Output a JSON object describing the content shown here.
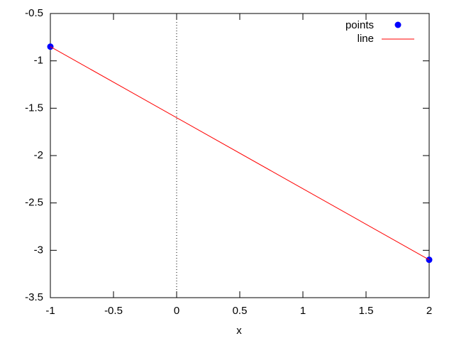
{
  "chart_data": {
    "type": "line",
    "xlabel": "x",
    "series": [
      {
        "name": "points",
        "color": "#0000ff",
        "mode": "points",
        "x": [
          -1,
          2
        ],
        "values": [
          -0.85,
          -3.1
        ]
      },
      {
        "name": "line",
        "color": "#ff0000",
        "mode": "lines",
        "x": [
          -1,
          2
        ],
        "values": [
          -0.85,
          -3.1
        ]
      }
    ],
    "xlim": [
      -1,
      2
    ],
    "xticks": [
      -1,
      -0.5,
      0,
      0.5,
      1,
      1.5,
      2
    ],
    "ylim": [
      -3.5,
      -0.5
    ],
    "yticks": [
      -3.5,
      -3,
      -2.5,
      -2,
      -1.5,
      -1,
      -0.5
    ],
    "grid": false,
    "zeroaxis": true,
    "legend": "top-right"
  }
}
